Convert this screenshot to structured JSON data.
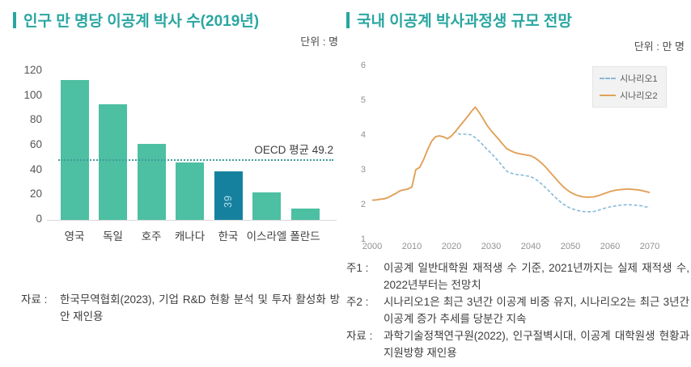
{
  "left_panel": {
    "title": "인구 만 명당 이공계 박사 수(2019년)",
    "unit": "단위 : 명",
    "source": {
      "label": "자료 :",
      "text": "한국무역협회(2023), 기업 R&D 현황 분석 및 투자 활성화 방안 재인용"
    }
  },
  "right_panel": {
    "title": "국내 이공계 박사과정생 규모 전망",
    "unit": "단위 : 만 명",
    "notes": [
      {
        "label": "주1 :",
        "text": "이공계 일반대학원 재적생 수 기준, 2021년까지는 실제 재적생 수, 2022년부터는 전망치"
      },
      {
        "label": "주2 :",
        "text": "시나리오1은 최근 3년간 이공계 비중 유지, 시나리오2는 최근 3년간 이공계 증가 추세를 당분간 지속"
      },
      {
        "label": "자료 :",
        "text": "과학기술정책연구원(2022), 인구절벽시대, 이공계 대학원생 현황과 지원방향 재인용"
      }
    ]
  },
  "colors": {
    "title_teal": "#2AA6A1",
    "bar_green": "#4DBFA2",
    "bar_highlight": "#16819F",
    "reference_line": "#3E9E99",
    "scenario1_blue": "#87B9D9",
    "scenario2_orange": "#E2A159",
    "axis_gray": "#919191",
    "text_dark": "#3D3D3D"
  },
  "chart_data": [
    {
      "type": "bar",
      "title": "인구 만 명당 이공계 박사 수(2019년)",
      "unit": "단위 : 명",
      "categories": [
        "영국",
        "독일",
        "호주",
        "캐나다",
        "한국",
        "이스라엘",
        "폴란드"
      ],
      "values": [
        113,
        93,
        61,
        46,
        39,
        22,
        9
      ],
      "highlight_index": 4,
      "highlight_value_label": "39",
      "reference_line": {
        "value": 49.2,
        "label": "OECD 평균 49.2"
      },
      "ylim": [
        0,
        120
      ],
      "yticks": [
        0,
        20,
        40,
        60,
        80,
        100,
        120
      ],
      "grid": false,
      "legend_position": "none"
    },
    {
      "type": "line",
      "title": "국내 이공계 박사과정생 규모 전망",
      "unit": "단위 : 만 명",
      "ylim": [
        1,
        6
      ],
      "yticks": [
        1,
        2,
        3,
        4,
        5,
        6
      ],
      "xticks": [
        2000,
        2010,
        2020,
        2030,
        2040,
        2050,
        2060,
        2070
      ],
      "grid": false,
      "legend_position": "top-right",
      "x": [
        2000,
        2001,
        2002,
        2003,
        2004,
        2005,
        2006,
        2007,
        2008,
        2009,
        2010,
        2011,
        2012,
        2013,
        2014,
        2015,
        2016,
        2017,
        2018,
        2019,
        2020,
        2021,
        2022,
        2023,
        2024,
        2025,
        2026,
        2027,
        2028,
        2029,
        2030,
        2031,
        2032,
        2033,
        2034,
        2035,
        2036,
        2037,
        2038,
        2039,
        2040,
        2041,
        2042,
        2043,
        2044,
        2045,
        2046,
        2047,
        2048,
        2049,
        2050,
        2051,
        2052,
        2053,
        2054,
        2055,
        2056,
        2057,
        2058,
        2059,
        2060,
        2061,
        2062,
        2063,
        2064,
        2065,
        2066,
        2067,
        2068,
        2069,
        2070
      ],
      "series": [
        {
          "name": "시나리오1",
          "color": "#87B9D9",
          "line_style": "dashed",
          "values": [
            2.1,
            2.11,
            2.13,
            2.14,
            2.18,
            2.24,
            2.3,
            2.37,
            2.4,
            2.42,
            2.48,
            2.98,
            3.05,
            3.28,
            3.56,
            3.8,
            3.93,
            3.95,
            3.92,
            3.87,
            3.95,
            4.08,
            4.0,
            4.0,
            4.0,
            3.98,
            3.9,
            3.8,
            3.68,
            3.56,
            3.45,
            3.33,
            3.2,
            3.06,
            2.93,
            2.88,
            2.85,
            2.83,
            2.82,
            2.8,
            2.78,
            2.72,
            2.64,
            2.54,
            2.43,
            2.32,
            2.2,
            2.1,
            2.0,
            1.93,
            1.87,
            1.83,
            1.8,
            1.78,
            1.77,
            1.77,
            1.78,
            1.81,
            1.85,
            1.88,
            1.91,
            1.93,
            1.95,
            1.96,
            1.97,
            1.97,
            1.96,
            1.95,
            1.94,
            1.91,
            1.89
          ]
        },
        {
          "name": "시나리오2",
          "color": "#E2A159",
          "line_style": "solid",
          "values": [
            2.1,
            2.11,
            2.13,
            2.14,
            2.18,
            2.24,
            2.3,
            2.37,
            2.4,
            2.42,
            2.48,
            2.98,
            3.05,
            3.28,
            3.56,
            3.8,
            3.93,
            3.95,
            3.92,
            3.87,
            3.95,
            4.08,
            4.22,
            4.36,
            4.5,
            4.65,
            4.78,
            4.62,
            4.44,
            4.25,
            4.1,
            3.97,
            3.84,
            3.7,
            3.58,
            3.52,
            3.47,
            3.44,
            3.42,
            3.4,
            3.38,
            3.32,
            3.24,
            3.14,
            3.02,
            2.89,
            2.76,
            2.63,
            2.51,
            2.41,
            2.33,
            2.27,
            2.23,
            2.2,
            2.19,
            2.19,
            2.2,
            2.23,
            2.27,
            2.31,
            2.35,
            2.38,
            2.4,
            2.41,
            2.42,
            2.42,
            2.41,
            2.4,
            2.38,
            2.35,
            2.32
          ]
        }
      ]
    }
  ]
}
